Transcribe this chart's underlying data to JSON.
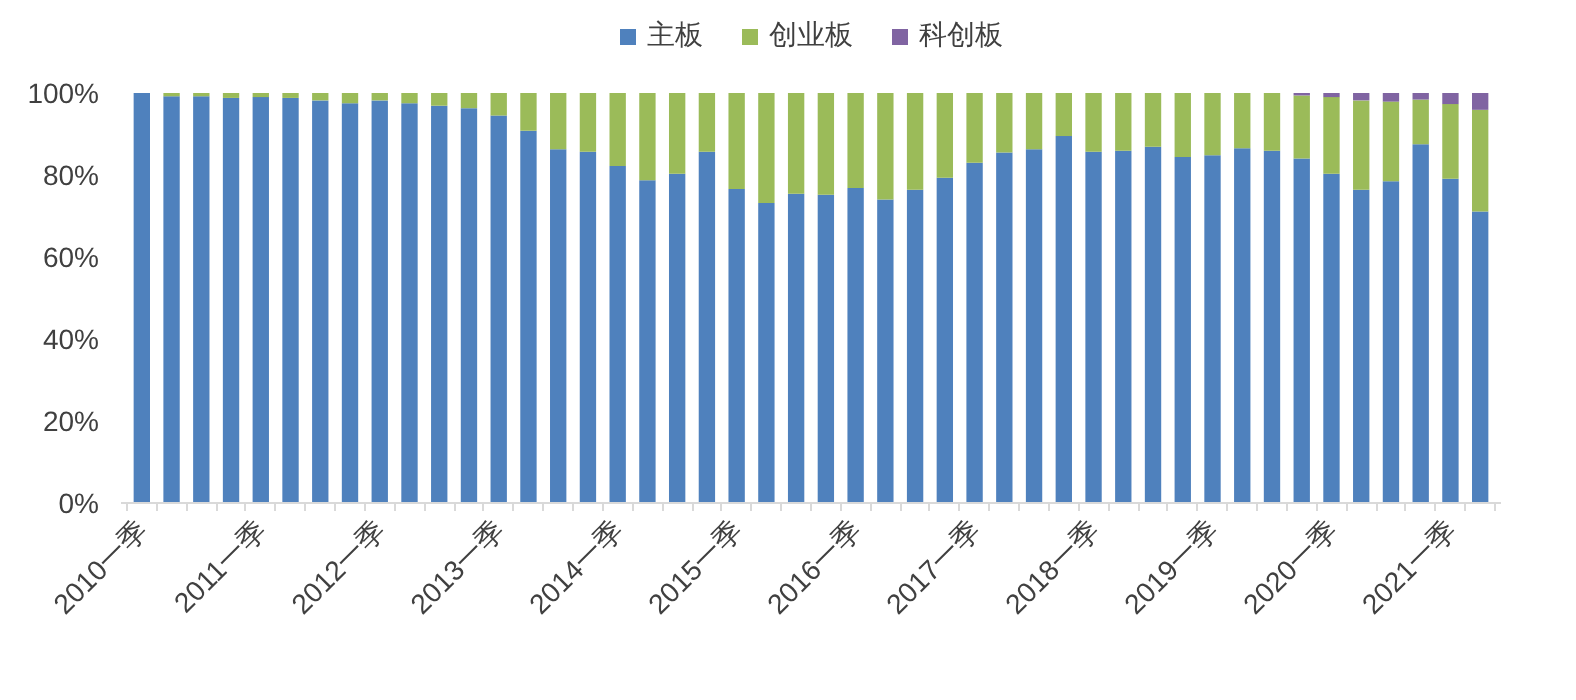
{
  "chart_data": {
    "type": "bar",
    "stacked": true,
    "legend": "top",
    "grid": false,
    "categories": [
      "2010一季",
      null,
      null,
      null,
      "2011一季",
      null,
      null,
      null,
      "2012一季",
      null,
      null,
      null,
      "2013一季",
      null,
      null,
      null,
      "2014一季",
      null,
      null,
      null,
      "2015一季",
      null,
      null,
      null,
      "2016一季",
      null,
      null,
      null,
      "2017一季",
      null,
      null,
      null,
      "2018一季",
      null,
      null,
      null,
      "2019一季",
      null,
      null,
      null,
      "2020一季",
      null,
      null,
      null,
      "2021一季",
      null
    ],
    "ylim": [
      0,
      100
    ],
    "yticks": [
      {
        "value": 0,
        "label": "0%"
      },
      {
        "value": 20,
        "label": "20%"
      },
      {
        "value": 40,
        "label": "40%"
      },
      {
        "value": 60,
        "label": "60%"
      },
      {
        "value": 80,
        "label": "80%"
      },
      {
        "value": 100,
        "label": "100%"
      }
    ],
    "series": [
      {
        "name": "主板",
        "color": "#4f81bd",
        "values": [
          100,
          99.2,
          99.2,
          98.8,
          99,
          98.8,
          98.2,
          97.5,
          98.2,
          97.5,
          96.9,
          96.3,
          94.5,
          90.8,
          86.3,
          85.7,
          82.2,
          78.7,
          80.3,
          85.7,
          76.6,
          73.2,
          75.4,
          75.2,
          76.8,
          74,
          76.4,
          79.3,
          83,
          85.5,
          86.3,
          89.5,
          85.7,
          85.9,
          86.9,
          84.4,
          84.8,
          86.5,
          85.9,
          84,
          80.3,
          76.4,
          78.5,
          87.5,
          79.1,
          71.1
        ]
      },
      {
        "name": "创业板",
        "color": "#9bbb59",
        "values": [
          0,
          0.8,
          0.8,
          1.2,
          1,
          1.2,
          1.8,
          2.5,
          1.8,
          2.5,
          3.1,
          3.7,
          5.5,
          9.2,
          13.7,
          14.3,
          17.8,
          21.3,
          19.7,
          14.3,
          23.4,
          26.8,
          24.6,
          24.8,
          23.2,
          26,
          23.6,
          20.7,
          17,
          14.5,
          13.7,
          10.5,
          14.3,
          14.1,
          13.1,
          15.6,
          15.2,
          13.5,
          14.1,
          15.4,
          18.7,
          21.8,
          19.4,
          10.9,
          18.2,
          24.8
        ]
      },
      {
        "name": "科创板",
        "color": "#8064a2",
        "values": [
          null,
          null,
          null,
          null,
          null,
          null,
          null,
          null,
          null,
          null,
          null,
          null,
          null,
          null,
          null,
          null,
          null,
          null,
          null,
          null,
          null,
          null,
          null,
          null,
          null,
          null,
          null,
          null,
          null,
          null,
          null,
          null,
          null,
          null,
          null,
          null,
          null,
          null,
          null,
          0.6,
          1,
          1.8,
          2.1,
          1.6,
          2.7,
          4.1
        ]
      }
    ]
  }
}
